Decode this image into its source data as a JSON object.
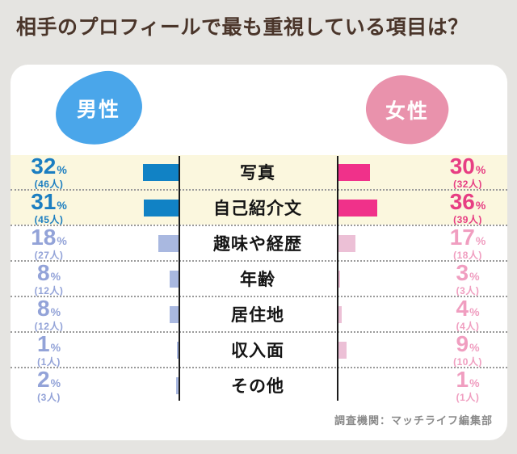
{
  "page": {
    "background": "#E5E4E1",
    "title": "相手のプロフィールで最も重視している項目は？",
    "title_color": "#4A352A",
    "source": "調査機関：マッチライフ編集部"
  },
  "legend": {
    "male": {
      "label": "男性",
      "color": "#4AA6EA"
    },
    "female": {
      "label": "女性",
      "color": "#E992AC"
    }
  },
  "colors": {
    "male_bar_strong": "#1182C5",
    "male_bar_muted": "#A9B8E0",
    "male_text_strong": "#1B7EC1",
    "male_text_muted": "#93A3D8",
    "female_bar_strong": "#F0318A",
    "female_bar_muted": "#ECC0D6",
    "female_text_strong": "#E73E83",
    "female_text_muted": "#F09EC0",
    "highlight_row_bg": "#FBF7DE"
  },
  "unit": "%",
  "chart_data": {
    "type": "bar",
    "variant": "butterfly",
    "title": "相手のプロフィールで最も重視している項目は？",
    "categories": [
      "写真",
      "自己紹介文",
      "趣味や経歴",
      "年齢",
      "居住地",
      "収入面",
      "その他"
    ],
    "series": [
      {
        "name": "男性",
        "values_pct": [
          32,
          31,
          18,
          8,
          8,
          1,
          2
        ],
        "counts": [
          46,
          45,
          27,
          12,
          12,
          1,
          3
        ]
      },
      {
        "name": "女性",
        "values_pct": [
          30,
          36,
          17,
          3,
          4,
          9,
          1
        ],
        "counts": [
          32,
          39,
          18,
          3,
          4,
          10,
          1
        ]
      }
    ],
    "highlighted_rows": [
      0,
      1
    ],
    "value_suffix": "%",
    "count_suffix": "人",
    "legend_position": "top",
    "grid": "dotted-row-separators",
    "source": "調査機関：マッチライフ編集部"
  },
  "rows": [
    {
      "category": "写真",
      "male_pct": "32",
      "male_count": "(46人)",
      "female_pct": "30",
      "female_count": "(32人)",
      "highlight": true
    },
    {
      "category": "自己紹介文",
      "male_pct": "31",
      "male_count": "(45人)",
      "female_pct": "36",
      "female_count": "(39人)",
      "highlight": true
    },
    {
      "category": "趣味や経歴",
      "male_pct": "18",
      "male_count": "(27人)",
      "female_pct": "17",
      "female_count": "(18人)",
      "highlight": false
    },
    {
      "category": "年齢",
      "male_pct": "8",
      "male_count": "(12人)",
      "female_pct": "3",
      "female_count": "(3人)",
      "highlight": false
    },
    {
      "category": "居住地",
      "male_pct": "8",
      "male_count": "(12人)",
      "female_pct": "4",
      "female_count": "(4人)",
      "highlight": false
    },
    {
      "category": "収入面",
      "male_pct": "1",
      "male_count": "(1人)",
      "female_pct": "9",
      "female_count": "(10人)",
      "highlight": false
    },
    {
      "category": "その他",
      "male_pct": "2",
      "male_count": "(3人)",
      "female_pct": "1",
      "female_count": "(1人)",
      "highlight": false
    }
  ]
}
